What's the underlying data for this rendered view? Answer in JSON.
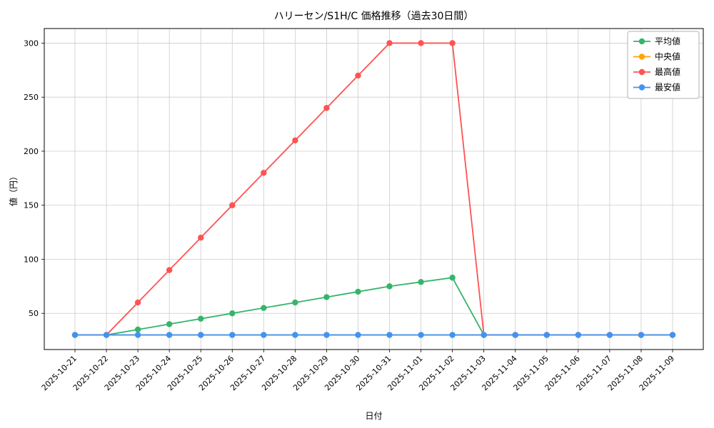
{
  "chart_data": {
    "type": "line",
    "title": "ハリーセン/S1H/C 価格推移（過去30日間）",
    "xlabel": "日付",
    "ylabel": "値（円）",
    "categories": [
      "2025-10-21",
      "2025-10-22",
      "2025-10-23",
      "2025-10-24",
      "2025-10-25",
      "2025-10-26",
      "2025-10-27",
      "2025-10-28",
      "2025-10-29",
      "2025-10-30",
      "2025-10-31",
      "2025-11-01",
      "2025-11-02",
      "2025-11-03",
      "2025-11-04",
      "2025-11-05",
      "2025-11-06",
      "2025-11-07",
      "2025-11-08",
      "2025-11-09"
    ],
    "series": [
      {
        "name": "平均値",
        "color": "#35b56a",
        "values": [
          30,
          30,
          35,
          40,
          45,
          50,
          55,
          60,
          65,
          70,
          75,
          79,
          83,
          30,
          30,
          30,
          30,
          30,
          30,
          30
        ]
      },
      {
        "name": "中央値",
        "color": "#ffa500",
        "values": [
          30,
          30,
          30,
          30,
          30,
          30,
          30,
          30,
          30,
          30,
          30,
          30,
          30,
          30,
          30,
          30,
          30,
          30,
          30,
          30
        ]
      },
      {
        "name": "最高値",
        "color": "#ff5252",
        "values": [
          30,
          30,
          60,
          90,
          120,
          150,
          180,
          210,
          240,
          270,
          300,
          300,
          300,
          30,
          30,
          30,
          30,
          30,
          30,
          30
        ]
      },
      {
        "name": "最安値",
        "color": "#4093f5",
        "values": [
          30,
          30,
          30,
          30,
          30,
          30,
          30,
          30,
          30,
          30,
          30,
          30,
          30,
          30,
          30,
          30,
          30,
          30,
          30,
          30
        ]
      }
    ],
    "ylim": [
      16.5,
      313.5
    ],
    "yticks": [
      50,
      100,
      150,
      200,
      250,
      300
    ],
    "grid": true,
    "grid_color": "#cccccc",
    "legend_position": "upper right",
    "x_tick_rotation": 45
  }
}
